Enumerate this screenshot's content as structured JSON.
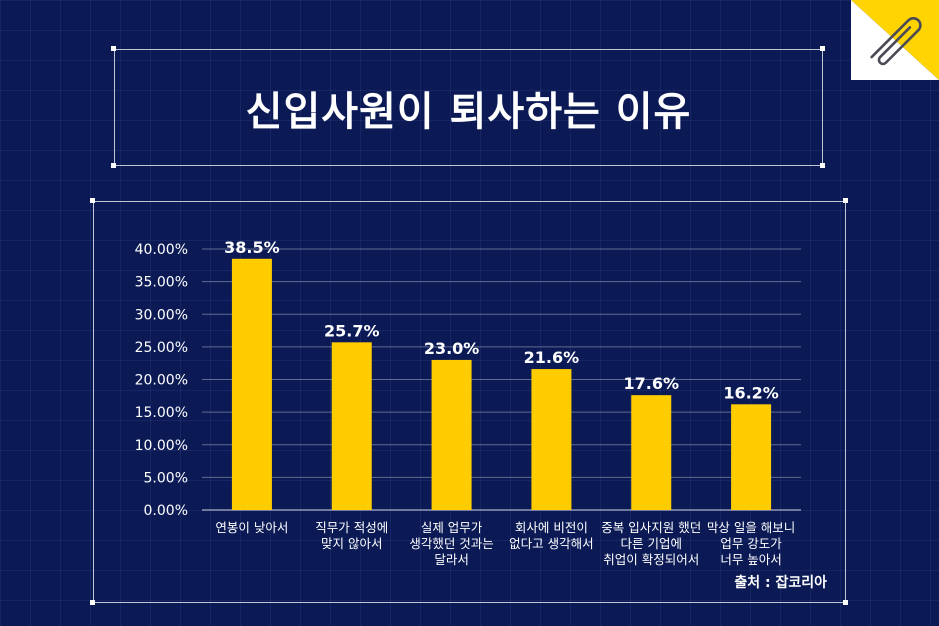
{
  "title": "신입사원이 퇴사하는 이유",
  "source": "출처 : 잡코리아",
  "colors": {
    "background": "#0b1a55",
    "bar": "#ffcc00",
    "accent": "#ffd400",
    "text": "#ffffff"
  },
  "icons": {
    "corner": "paperclip-icon"
  },
  "chart_data": {
    "type": "bar",
    "title": "",
    "xlabel": "",
    "ylabel": "",
    "ylim": [
      0,
      40
    ],
    "yticks": [
      "0.00%",
      "5.00%",
      "10.00%",
      "15.00%",
      "20.00%",
      "25.00%",
      "30.00%",
      "35.00%",
      "40.00%"
    ],
    "grid": true,
    "categories": [
      [
        "연봉이 낮아서"
      ],
      [
        "직무가 적성에",
        "맞지 않아서"
      ],
      [
        "실제 업무가",
        "생각했던 것과는",
        "달라서"
      ],
      [
        "회사에 비전이",
        "없다고 생각해서"
      ],
      [
        "중복 입사지원 했던",
        "다른 기업에",
        "취업이 확정되어서"
      ],
      [
        "막상 일을 해보니",
        "업무 강도가",
        "너무 높아서"
      ]
    ],
    "values": [
      38.5,
      25.7,
      23.0,
      21.6,
      17.6,
      16.2
    ],
    "labels": [
      "38.5%",
      "25.7%",
      "23.0%",
      "21.6%",
      "17.6%",
      "16.2%"
    ]
  }
}
